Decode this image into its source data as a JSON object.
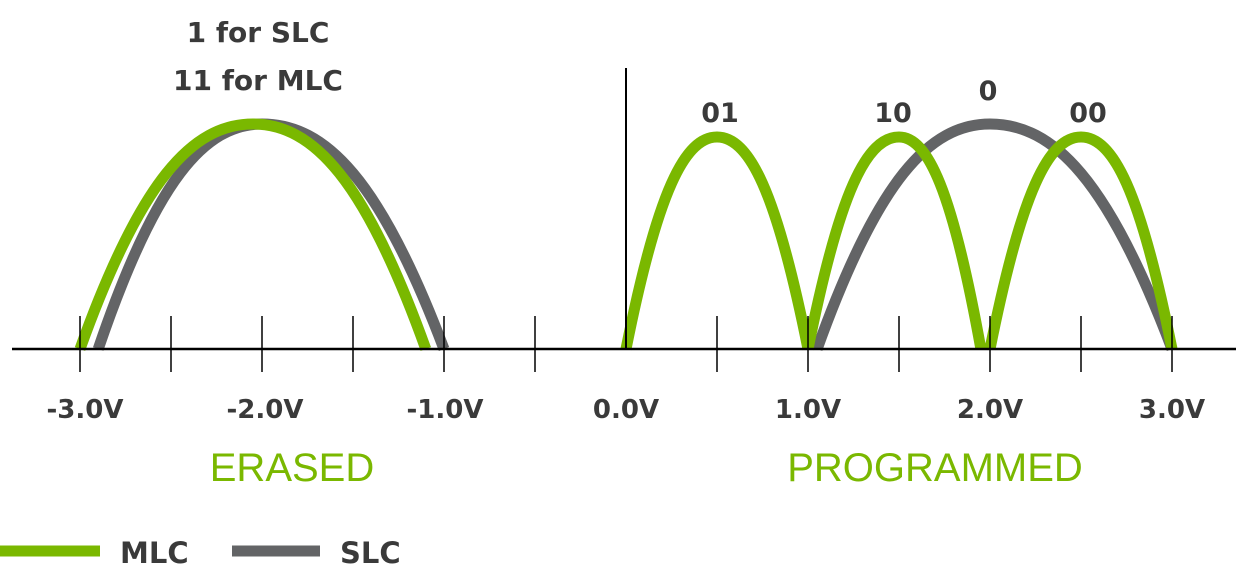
{
  "colors": {
    "mlc": "#7ab800",
    "slc": "#636466",
    "text": "#3a3a3a",
    "axis": "#000000"
  },
  "labels": {
    "erased_state_line1": "1 for SLC",
    "erased_state_line2": "11 for MLC",
    "state_01": "01",
    "state_10": "10",
    "state_0": "0",
    "state_00": "00"
  },
  "axis": {
    "ticks": [
      "-3.0V",
      "-2.0V",
      "-1.0V",
      "0.0V",
      "1.0V",
      "2.0V",
      "3.0V"
    ]
  },
  "regions": {
    "erased": "ERASED",
    "programmed": "PROGRAMMED"
  },
  "legend": {
    "mlc": "MLC",
    "slc": "SLC"
  },
  "curves": {
    "slc": [
      {
        "center": -2.0,
        "start": -2.9,
        "end": -1.0
      },
      {
        "center": 2.0,
        "start": 1.05,
        "end": 3.0
      }
    ],
    "mlc": [
      {
        "center": -2.05,
        "start": -3.0,
        "end": -1.1
      },
      {
        "center": 0.5,
        "start": 0.0,
        "end": 1.0
      },
      {
        "center": 1.5,
        "start": 1.0,
        "end": 1.95
      },
      {
        "center": 2.5,
        "start": 2.0,
        "end": 3.0
      }
    ]
  }
}
